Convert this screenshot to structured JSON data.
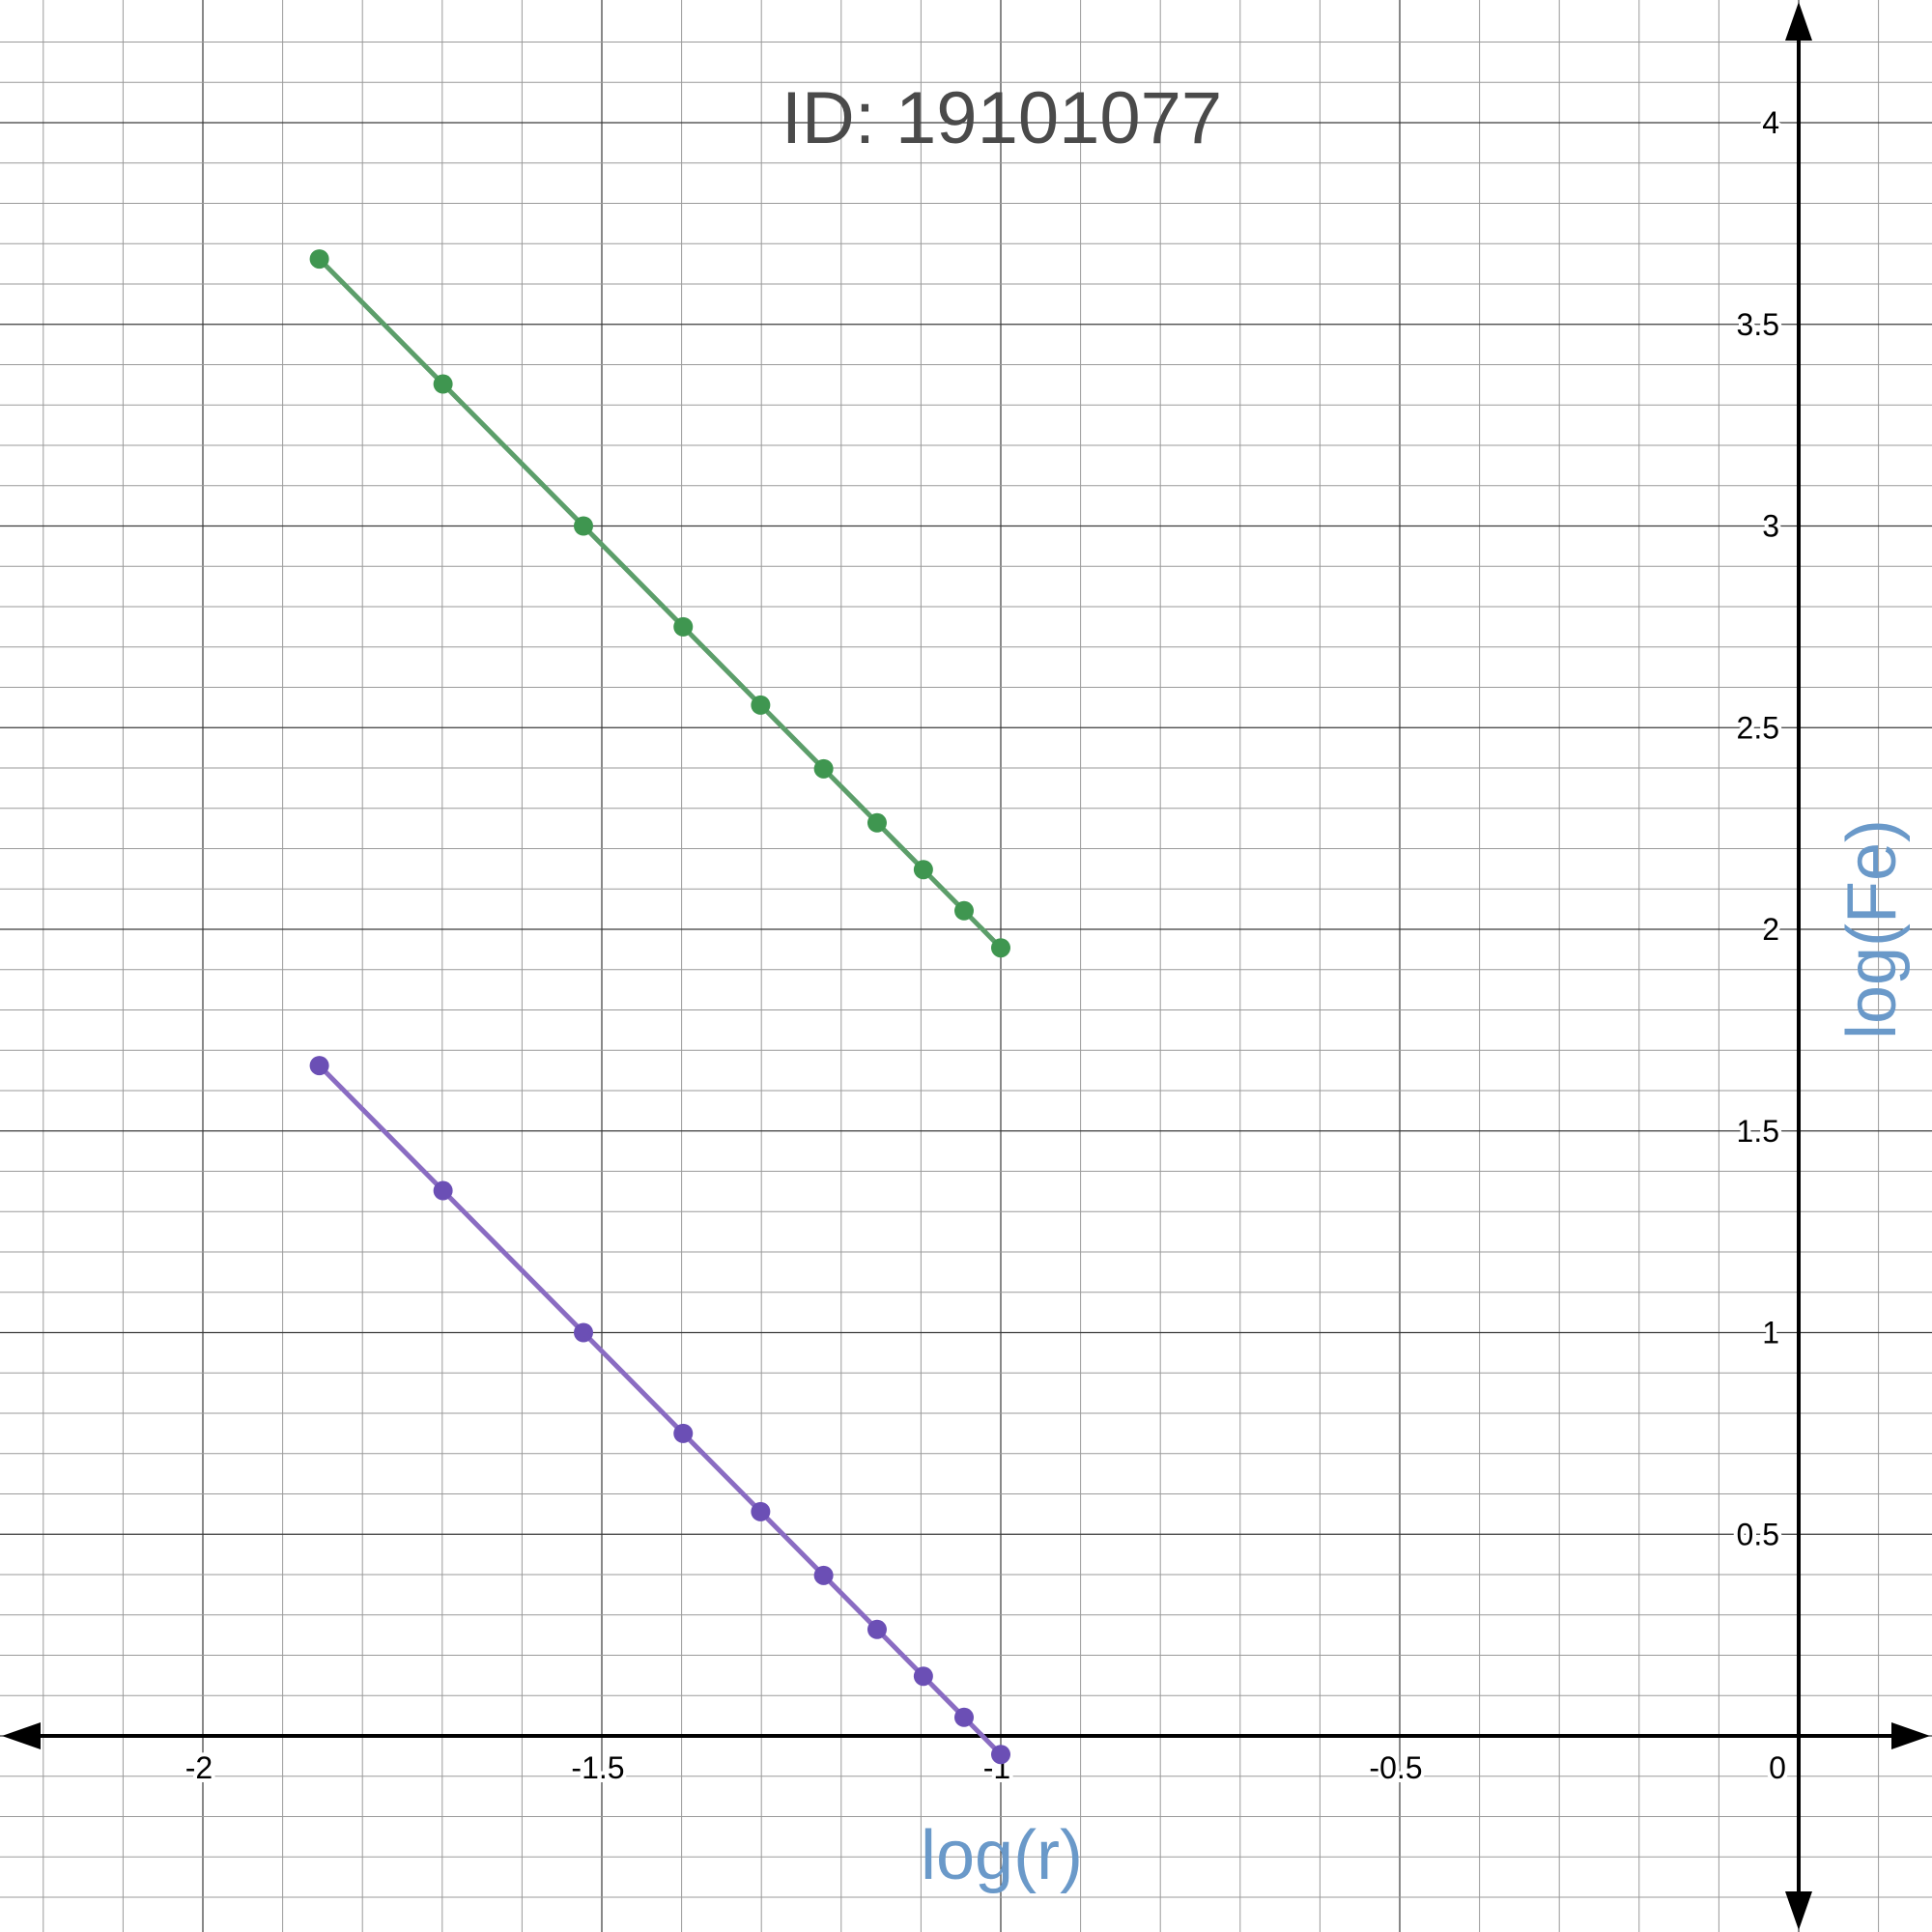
{
  "chart_data": {
    "type": "line",
    "title": "ID: 19101077",
    "xlabel": "log(r)",
    "ylabel": "log(Fe)",
    "xlim": [
      -2.5,
      0.33
    ],
    "ylim": [
      -0.49,
      4.3
    ],
    "x_ticks": [
      -2,
      -1.5,
      -1,
      -0.5,
      0
    ],
    "x_tick_labels": [
      "-2",
      "-1.5",
      "-1",
      "-0.5",
      "0"
    ],
    "y_ticks": [
      0.5,
      1,
      1.5,
      2,
      2.5,
      3,
      3.5,
      4
    ],
    "y_tick_labels": [
      "0.5",
      "1",
      "1.5",
      "2",
      "2.5",
      "3",
      "3.5",
      "4"
    ],
    "grid": true,
    "axis_label_color": "#6a99c9",
    "series": [
      {
        "color": "#5c9e6a",
        "marker_color": "#3f9650",
        "x": [
          -1.854,
          -1.699,
          -1.523,
          -1.398,
          -1.301,
          -1.222,
          -1.155,
          -1.097,
          -1.046,
          -1.0
        ],
        "y": [
          3.662,
          3.352,
          3.0,
          2.75,
          2.556,
          2.398,
          2.264,
          2.148,
          2.046,
          1.954
        ]
      },
      {
        "color": "#8a6cc2",
        "marker_color": "#6b4fb5",
        "x": [
          -1.854,
          -1.699,
          -1.523,
          -1.398,
          -1.301,
          -1.222,
          -1.155,
          -1.097,
          -1.046,
          -1.0
        ],
        "y": [
          1.662,
          1.352,
          1.0,
          0.75,
          0.556,
          0.398,
          0.264,
          0.148,
          0.046,
          -0.046
        ]
      }
    ]
  }
}
